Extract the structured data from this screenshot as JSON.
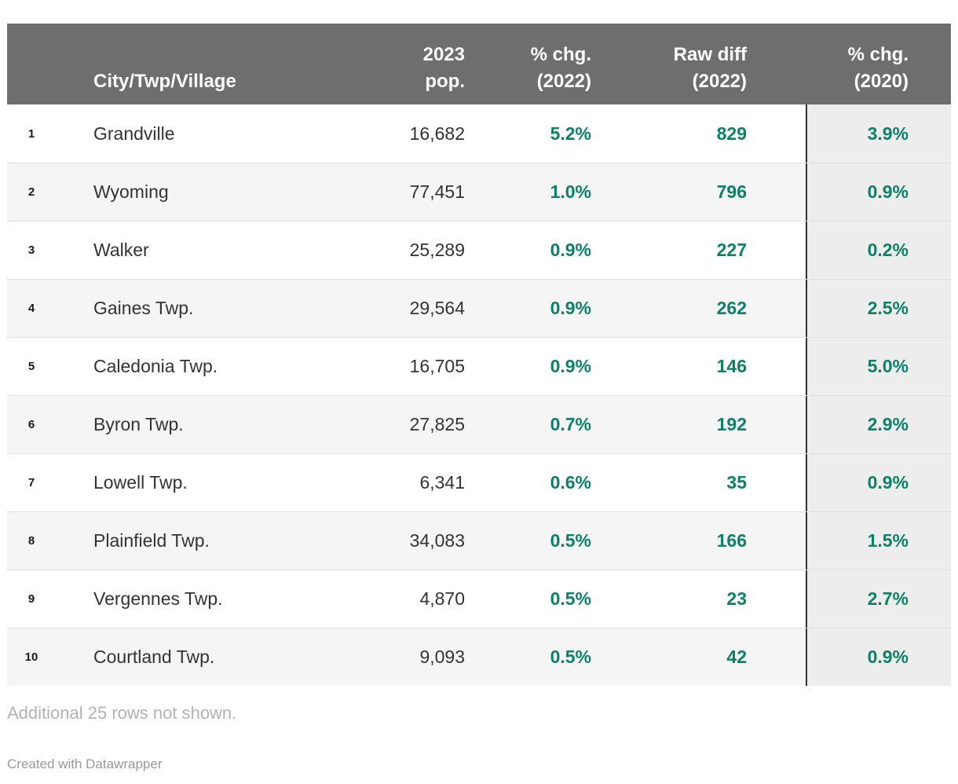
{
  "chart_data": {
    "type": "table",
    "columns": [
      "",
      "City/Twp/Village",
      "2023 pop.",
      "% chg. (2022)",
      "Raw diff (2022)",
      "% chg. (2020)"
    ],
    "rows": [
      [
        "1",
        "Grandville",
        "16,682",
        "5.2%",
        "829",
        "3.9%"
      ],
      [
        "2",
        "Wyoming",
        "77,451",
        "1.0%",
        "796",
        "0.9%"
      ],
      [
        "3",
        "Walker",
        "25,289",
        "0.9%",
        "227",
        "0.2%"
      ],
      [
        "4",
        "Gaines Twp.",
        "29,564",
        "0.9%",
        "262",
        "2.5%"
      ],
      [
        "5",
        "Caledonia Twp.",
        "16,705",
        "0.9%",
        "146",
        "5.0%"
      ],
      [
        "6",
        "Byron Twp.",
        "27,825",
        "0.7%",
        "192",
        "2.9%"
      ],
      [
        "7",
        "Lowell Twp.",
        "6,341",
        "0.6%",
        "35",
        "0.9%"
      ],
      [
        "8",
        "Plainfield Twp.",
        "34,083",
        "0.5%",
        "166",
        "1.5%"
      ],
      [
        "9",
        "Vergennes Twp.",
        "4,870",
        "0.5%",
        "23",
        "2.7%"
      ],
      [
        "10",
        "Courtland Twp.",
        "9,093",
        "0.5%",
        "42",
        "0.9%"
      ]
    ],
    "layout_hints": {
      "zebra_striping": true,
      "last_column_highlighted": true,
      "numeric_columns_green_bold": [
        "% chg. (2022)",
        "Raw diff (2022)",
        "% chg. (2020)"
      ]
    }
  },
  "header": {
    "rank_label": "",
    "name_label": "City/Twp/Village",
    "pop_label": "2023\npop.",
    "pct2022_label": "% chg.\n(2022)",
    "raw_label": "Raw diff\n(2022)",
    "pct2020_label": "% chg.\n(2020)"
  },
  "rows": [
    {
      "rank": "1",
      "name": "Grandville",
      "pop": "16,682",
      "pct2022": "5.2%",
      "raw": "829",
      "pct2020": "3.9%"
    },
    {
      "rank": "2",
      "name": "Wyoming",
      "pop": "77,451",
      "pct2022": "1.0%",
      "raw": "796",
      "pct2020": "0.9%"
    },
    {
      "rank": "3",
      "name": "Walker",
      "pop": "25,289",
      "pct2022": "0.9%",
      "raw": "227",
      "pct2020": "0.2%"
    },
    {
      "rank": "4",
      "name": "Gaines Twp.",
      "pop": "29,564",
      "pct2022": "0.9%",
      "raw": "262",
      "pct2020": "2.5%"
    },
    {
      "rank": "5",
      "name": "Caledonia Twp.",
      "pop": "16,705",
      "pct2022": "0.9%",
      "raw": "146",
      "pct2020": "5.0%"
    },
    {
      "rank": "6",
      "name": "Byron Twp.",
      "pop": "27,825",
      "pct2022": "0.7%",
      "raw": "192",
      "pct2020": "2.9%"
    },
    {
      "rank": "7",
      "name": "Lowell Twp.",
      "pop": "6,341",
      "pct2022": "0.6%",
      "raw": "35",
      "pct2020": "0.9%"
    },
    {
      "rank": "8",
      "name": "Plainfield Twp.",
      "pop": "34,083",
      "pct2022": "0.5%",
      "raw": "166",
      "pct2020": "1.5%"
    },
    {
      "rank": "9",
      "name": "Vergennes Twp.",
      "pop": "4,870",
      "pct2022": "0.5%",
      "raw": "23",
      "pct2020": "2.7%"
    },
    {
      "rank": "10",
      "name": "Courtland Twp.",
      "pop": "9,093",
      "pct2022": "0.5%",
      "raw": "42",
      "pct2020": "0.9%"
    }
  ],
  "footer": {
    "note": "Additional 25 rows not shown.",
    "credit": "Created with Datawrapper"
  },
  "colors": {
    "header_bg": "#6e6e6e",
    "accent_green": "#0d8168",
    "stripe": "#f5f5f5",
    "last_col_bg": "#ededed",
    "divider": "#333333",
    "row_line": "#e1e1e1",
    "body_text": "#333333",
    "note_text": "#b2b2b2",
    "credit_text": "#999999"
  }
}
